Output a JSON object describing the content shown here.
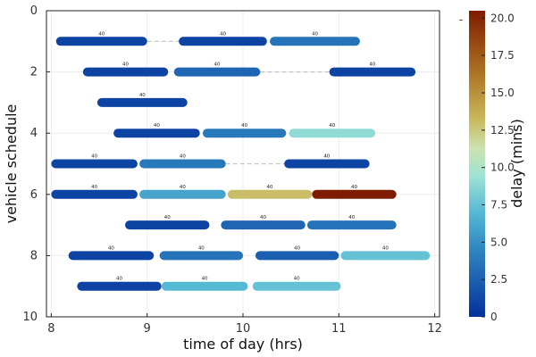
{
  "chart_data": {
    "type": "gantt",
    "title": "",
    "xlabel": "time of day (hrs)",
    "ylabel": "vehicle schedule",
    "xlim": [
      7.95,
      12.05
    ],
    "ylim": [
      0,
      10
    ],
    "y_inverted": true,
    "xticks": [
      8,
      9,
      10,
      11,
      12
    ],
    "yticks": [
      0,
      2,
      4,
      6,
      8,
      10
    ],
    "grid": true,
    "colorbar": {
      "label": "delay (mins)",
      "range": [
        0,
        20.5
      ],
      "ticks": [
        "0",
        "2.5",
        "5.0",
        "7.5",
        "10.0",
        "12.5",
        "15.0",
        "17.5",
        "20.0"
      ],
      "colormap": "roma-reversed",
      "top_marker": "-"
    },
    "segments": [
      {
        "row": 1,
        "start": 8.05,
        "end": 9.0,
        "label": "40",
        "delay": 1.0
      },
      {
        "row": 1,
        "start": 9.33,
        "end": 10.25,
        "label": "40",
        "delay": 1.0
      },
      {
        "row": 1,
        "start": 10.28,
        "end": 11.22,
        "label": "40",
        "delay": 3.5
      },
      {
        "row": 2,
        "start": 8.33,
        "end": 9.22,
        "label": "40",
        "delay": 1.0
      },
      {
        "row": 2,
        "start": 9.28,
        "end": 10.18,
        "label": "40",
        "delay": 2.8
      },
      {
        "row": 2,
        "start": 10.9,
        "end": 11.8,
        "label": "40",
        "delay": 1.0
      },
      {
        "row": 3,
        "start": 8.48,
        "end": 9.42,
        "label": "40",
        "delay": 1.0
      },
      {
        "row": 4,
        "start": 8.65,
        "end": 9.55,
        "label": "40",
        "delay": 1.0
      },
      {
        "row": 4,
        "start": 9.58,
        "end": 10.45,
        "label": "40",
        "delay": 3.8
      },
      {
        "row": 4,
        "start": 10.48,
        "end": 11.38,
        "label": "40",
        "delay": 9.0
      },
      {
        "row": 5,
        "start": 8.0,
        "end": 8.9,
        "label": "40",
        "delay": 1.0
      },
      {
        "row": 5,
        "start": 8.92,
        "end": 9.82,
        "label": "40",
        "delay": 3.8
      },
      {
        "row": 5,
        "start": 10.43,
        "end": 11.32,
        "label": "40",
        "delay": 1.0
      },
      {
        "row": 6,
        "start": 8.0,
        "end": 8.9,
        "label": "40",
        "delay": 1.0
      },
      {
        "row": 6,
        "start": 8.92,
        "end": 9.82,
        "label": "40",
        "delay": 6.0
      },
      {
        "row": 6,
        "start": 9.84,
        "end": 10.72,
        "label": "40",
        "delay": 13.0
      },
      {
        "row": 6,
        "start": 10.72,
        "end": 11.6,
        "label": "40",
        "delay": 20.5
      },
      {
        "row": 7,
        "start": 8.77,
        "end": 9.65,
        "label": "40",
        "delay": 1.0
      },
      {
        "row": 7,
        "start": 9.77,
        "end": 10.65,
        "label": "40",
        "delay": 2.8
      },
      {
        "row": 7,
        "start": 10.67,
        "end": 11.6,
        "label": "40",
        "delay": 3.5
      },
      {
        "row": 8,
        "start": 8.18,
        "end": 9.07,
        "label": "40",
        "delay": 1.0
      },
      {
        "row": 8,
        "start": 9.13,
        "end": 10.0,
        "label": "40",
        "delay": 3.5
      },
      {
        "row": 8,
        "start": 10.13,
        "end": 11.0,
        "label": "40",
        "delay": 2.5
      },
      {
        "row": 8,
        "start": 11.02,
        "end": 11.95,
        "label": "40",
        "delay": 7.5
      },
      {
        "row": 9,
        "start": 8.27,
        "end": 9.15,
        "label": "40",
        "delay": 1.0
      },
      {
        "row": 9,
        "start": 9.15,
        "end": 10.05,
        "label": "40",
        "delay": 7.0
      },
      {
        "row": 9,
        "start": 10.1,
        "end": 11.02,
        "label": "40",
        "delay": 7.5
      }
    ],
    "gaps": [
      {
        "row": 1,
        "start": 9.0,
        "end": 9.33
      },
      {
        "row": 2,
        "start": 10.18,
        "end": 10.9
      },
      {
        "row": 5,
        "start": 9.82,
        "end": 10.43
      }
    ]
  }
}
